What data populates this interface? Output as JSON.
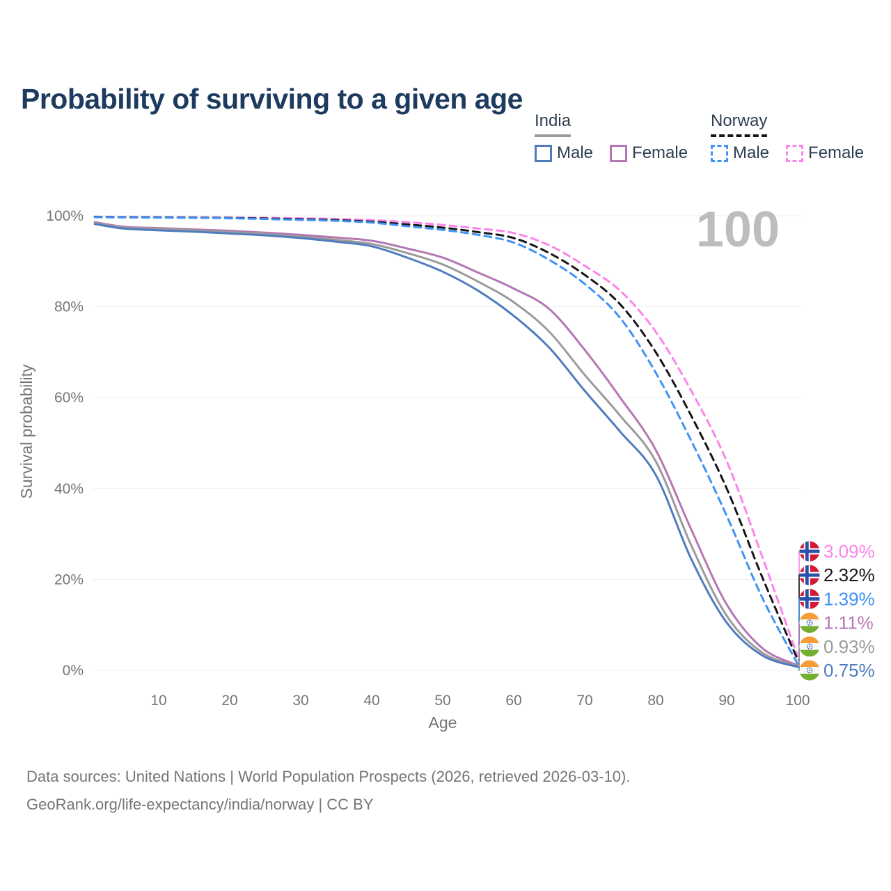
{
  "title": "Probability of surviving to a given age",
  "big_age_label": "100",
  "legend": {
    "groups": [
      {
        "country": "India",
        "underline": {
          "color": "#9b9b9b",
          "dashed": false
        },
        "items": [
          {
            "label": "Male",
            "color": "#4f7cbe",
            "dashed": false
          },
          {
            "label": "Female",
            "color": "#b577b3",
            "dashed": false
          }
        ]
      },
      {
        "country": "Norway",
        "underline": {
          "color": "#161616",
          "dashed": true
        },
        "items": [
          {
            "label": "Male",
            "color": "#3f93f5",
            "dashed": true
          },
          {
            "label": "Female",
            "color": "#fc84ea",
            "dashed": true
          }
        ]
      }
    ]
  },
  "chart_data": {
    "type": "line",
    "title": "Probability of surviving to a given age",
    "xlabel": "Age",
    "ylabel": "Survival probability",
    "xlim": [
      0,
      100
    ],
    "ylim": [
      0,
      100
    ],
    "grid": "horizontal",
    "legend_position": "top-right",
    "x_ticks": [
      10,
      20,
      30,
      40,
      50,
      60,
      70,
      80,
      90,
      100
    ],
    "y_ticks": [
      {
        "value": 0,
        "label": "0%"
      },
      {
        "value": 20,
        "label": "20%"
      },
      {
        "value": 40,
        "label": "40%"
      },
      {
        "value": 60,
        "label": "60%"
      },
      {
        "value": 80,
        "label": "80%"
      },
      {
        "value": 100,
        "label": "100%"
      }
    ],
    "x": [
      1,
      5,
      10,
      15,
      20,
      25,
      30,
      35,
      40,
      45,
      50,
      55,
      60,
      65,
      70,
      75,
      80,
      85,
      90,
      95,
      100
    ],
    "series": [
      {
        "id": "norway-female",
        "name": "Norway Female",
        "country": "Norway",
        "sex": "Female",
        "color": "#fc84ea",
        "dashed": true,
        "end_label": "3.09%",
        "values": [
          99.8,
          99.76,
          99.72,
          99.68,
          99.62,
          99.55,
          99.45,
          99.3,
          99.05,
          98.6,
          98.0,
          97.2,
          96.2,
          93.5,
          89.0,
          83.5,
          74.5,
          61.5,
          46.0,
          25.0,
          3.09
        ]
      },
      {
        "id": "norway-overall",
        "name": "Norway",
        "country": "Norway",
        "sex": "",
        "color": "#161616",
        "dashed": true,
        "end_label": "2.32%",
        "values": [
          99.75,
          99.7,
          99.66,
          99.6,
          99.53,
          99.4,
          99.25,
          99.05,
          98.7,
          98.1,
          97.4,
          96.4,
          95.1,
          91.8,
          87.0,
          80.5,
          70.0,
          56.0,
          40.0,
          20.5,
          2.32
        ]
      },
      {
        "id": "norway-male",
        "name": "Norway Male",
        "country": "Norway",
        "sex": "Male",
        "color": "#3f93f5",
        "dashed": true,
        "end_label": "1.39%",
        "values": [
          99.7,
          99.65,
          99.6,
          99.55,
          99.45,
          99.3,
          99.1,
          98.9,
          98.5,
          97.7,
          96.9,
          95.8,
          94.1,
          90.3,
          85.0,
          77.5,
          65.5,
          50.5,
          34.0,
          16.0,
          1.39
        ]
      },
      {
        "id": "india-female",
        "name": "India Female",
        "country": "India",
        "sex": "Female",
        "color": "#b577b3",
        "dashed": false,
        "end_label": "1.11%",
        "values": [
          98.6,
          97.6,
          97.3,
          97.0,
          96.7,
          96.3,
          95.8,
          95.2,
          94.5,
          92.8,
          90.8,
          87.5,
          84.0,
          79.5,
          70.5,
          60.0,
          48.5,
          31.0,
          14.5,
          4.9,
          1.11
        ]
      },
      {
        "id": "india-overall",
        "name": "India",
        "country": "India",
        "sex": "",
        "color": "#9b9b9b",
        "dashed": false,
        "end_label": "0.93%",
        "values": [
          98.4,
          97.4,
          97.1,
          96.8,
          96.4,
          96.0,
          95.4,
          94.7,
          93.8,
          91.8,
          89.3,
          85.5,
          81.0,
          74.5,
          65.0,
          56.0,
          46.0,
          27.5,
          12.0,
          3.9,
          0.93
        ]
      },
      {
        "id": "india-male",
        "name": "India Male",
        "country": "India",
        "sex": "Male",
        "color": "#4f7cbe",
        "dashed": false,
        "end_label": "0.75%",
        "values": [
          98.2,
          97.2,
          96.8,
          96.5,
          96.1,
          95.7,
          95.1,
          94.3,
          93.3,
          90.8,
          87.7,
          83.5,
          78.0,
          71.0,
          61.5,
          52.5,
          43.0,
          24.5,
          10.5,
          3.3,
          0.75
        ]
      }
    ],
    "flag_colors": {
      "norway": {
        "red": "#d11a38",
        "blue": "#2a50a8",
        "white": "#ffffff"
      },
      "india": {
        "saffron": "#f89c35",
        "white": "#f7f9f9",
        "green": "#73ae2e",
        "chakra": "#2f43b0"
      }
    }
  },
  "footer": {
    "line1": "Data sources: United Nations | World Population Prospects (2026, retrieved 2026-03-10).",
    "line2": "GeoRank.org/life-expectancy/india/norway | CC BY"
  }
}
